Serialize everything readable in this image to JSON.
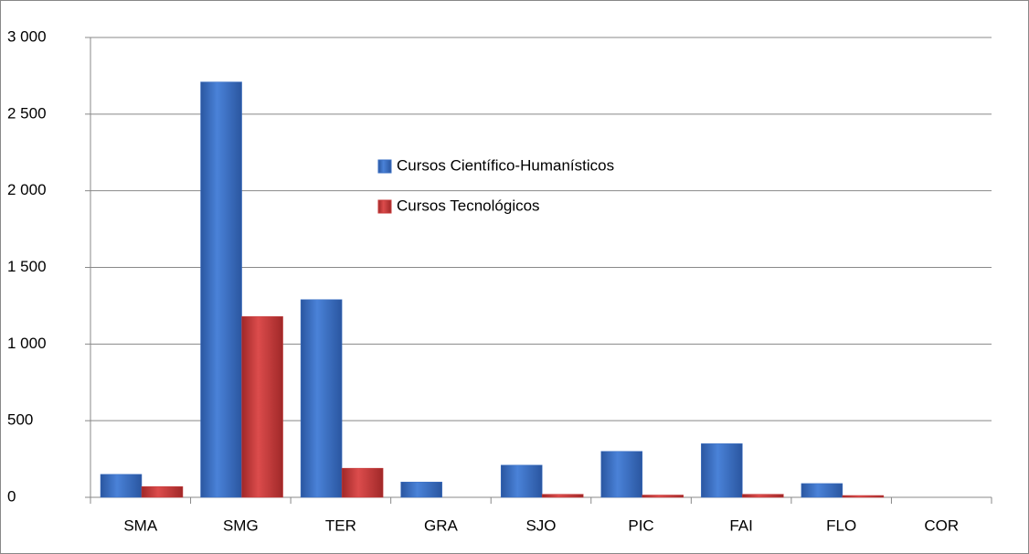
{
  "chart_data": {
    "type": "bar",
    "categories": [
      "SMA",
      "SMG",
      "TER",
      "GRA",
      "SJO",
      "PIC",
      "FAI",
      "FLO",
      "COR"
    ],
    "series": [
      {
        "name": "Cursos Científico-Humanísticos",
        "color": "#3a6fc4",
        "values": [
          150,
          2710,
          1290,
          100,
          210,
          300,
          350,
          90,
          0
        ]
      },
      {
        "name": "Cursos Tecnológicos",
        "color": "#c83a3a",
        "values": [
          70,
          1180,
          190,
          0,
          20,
          15,
          20,
          12,
          0
        ]
      }
    ],
    "ylim": [
      0,
      3000
    ],
    "yticks": [
      0,
      500,
      {
        "value": 1000,
        "label": "1 000"
      },
      {
        "value": 1500,
        "label": "1 500"
      },
      {
        "value": 2000,
        "label": "2 000"
      },
      {
        "value": 2500,
        "label": "2 500"
      },
      {
        "value": 3000,
        "label": "3 000"
      }
    ],
    "grid": true
  }
}
